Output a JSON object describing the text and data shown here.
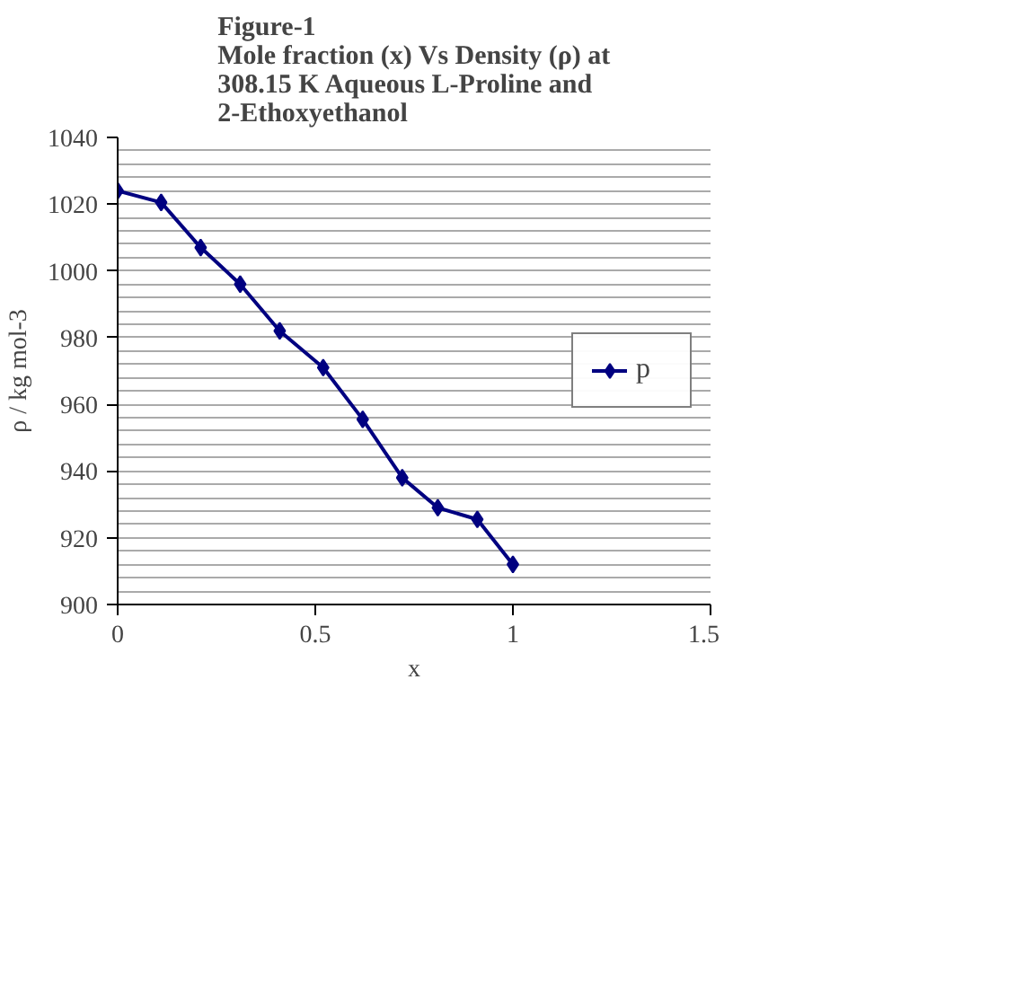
{
  "chart_data": {
    "type": "line",
    "title": "Figure-1\nMole fraction (x) Vs Density (ρ) at\n308.15 K  Aqueous L-Proline and\n2-Ethoxyethanol",
    "xlabel": "x",
    "ylabel": "ρ / kg mol-3",
    "x": [
      0,
      0.11,
      0.21,
      0.31,
      0.41,
      0.52,
      0.62,
      0.72,
      0.81,
      0.91,
      1.0
    ],
    "series": [
      {
        "name": "p",
        "color": "#000080",
        "values": [
          1024,
          1020.5,
          1007,
          996,
          982,
          971,
          955.5,
          938,
          929,
          925.5,
          912
        ]
      }
    ],
    "xlim": [
      0,
      1.5
    ],
    "xticks": [
      0,
      0.5,
      1,
      1.5
    ],
    "ylim": [
      900,
      1040
    ],
    "yticks": [
      900,
      920,
      940,
      960,
      980,
      1000,
      1020,
      1040
    ],
    "grid": "y",
    "legend": "right",
    "marker": "diamond",
    "line_style": "solid"
  }
}
